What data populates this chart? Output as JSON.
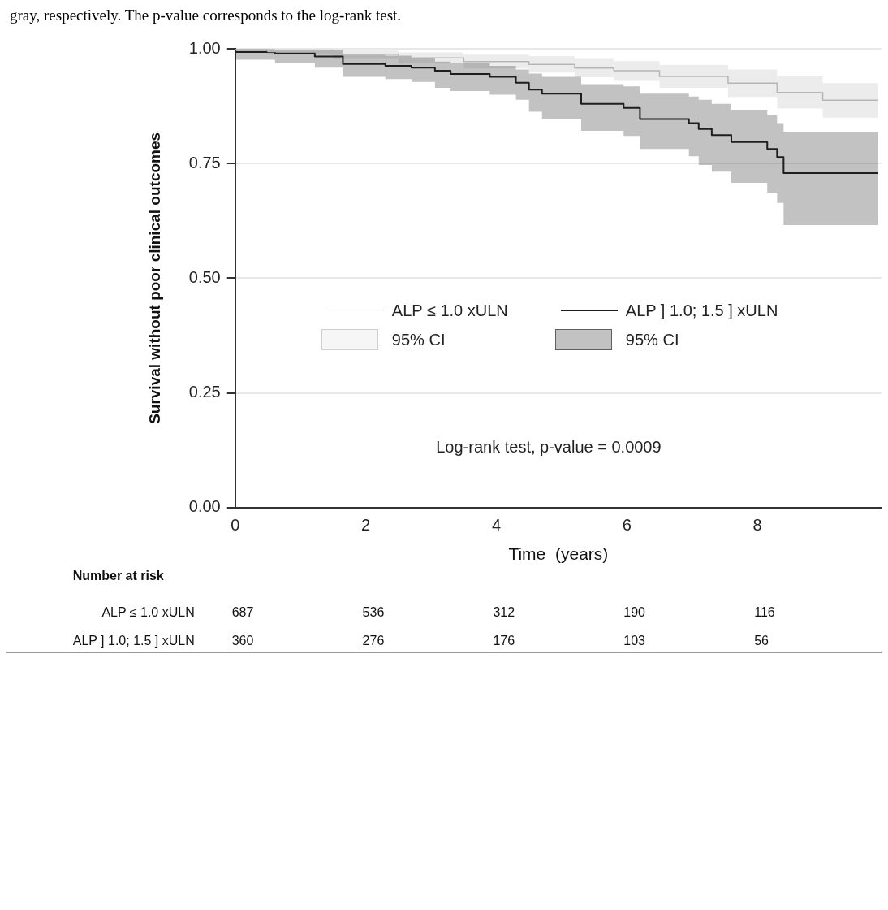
{
  "chart_data": {
    "type": "step",
    "xlabel": "Time  (years)",
    "ylabel": "Survival without poor clinical outcomes",
    "xlim": [
      0,
      9.9
    ],
    "xticks": [
      0,
      2,
      4,
      6,
      8
    ],
    "ylim": [
      0,
      1
    ],
    "yticks": [
      {
        "value": 0,
        "label": "0.00"
      },
      {
        "value": 0.25,
        "label": "0.25"
      },
      {
        "value": 0.5,
        "label": "0.50"
      },
      {
        "value": 0.75,
        "label": "0.75"
      },
      {
        "value": 1,
        "label": "1.00"
      }
    ],
    "grid": "y",
    "legend": "center",
    "marker": "none",
    "line_style": "solid",
    "series": [
      {
        "name": "ALP ≤ 1.0 xULN",
        "color": "#b5b5b5",
        "x": [
          0,
          0.5,
          1.5,
          2.5,
          3.5,
          4.5,
          5.2,
          5.8,
          6.5,
          7.55,
          8.3,
          9.0,
          9.45,
          9.85
        ],
        "values": [
          1,
          0.998,
          0.994,
          0.988,
          0.98,
          0.972,
          0.966,
          0.958,
          0.952,
          0.94,
          0.925,
          0.905,
          0.888,
          0.888
        ],
        "lower": [
          1,
          0.993,
          0.987,
          0.978,
          0.968,
          0.957,
          0.948,
          0.938,
          0.93,
          0.915,
          0.895,
          0.87,
          0.85,
          0.85
        ],
        "upper": [
          1,
          1,
          0.999,
          0.996,
          0.992,
          0.987,
          0.984,
          0.978,
          0.973,
          0.965,
          0.955,
          0.94,
          0.925,
          0.925
        ]
      },
      {
        "name": "ALP ] 1.0; 1.5 ] xULN",
        "color": "#1e1e1e",
        "x": [
          0,
          0.61,
          1.22,
          1.65,
          2.3,
          2.7,
          3.06,
          3.3,
          3.9,
          4.3,
          4.5,
          4.7,
          5.3,
          5.95,
          6.2,
          6.95,
          7.1,
          7.3,
          7.6,
          8.15,
          8.3,
          8.4,
          9.75,
          9.85
        ],
        "values": [
          1,
          0.993,
          0.99,
          0.983,
          0.967,
          0.963,
          0.959,
          0.952,
          0.945,
          0.939,
          0.926,
          0.911,
          0.902,
          0.88,
          0.871,
          0.847,
          0.838,
          0.825,
          0.812,
          0.797,
          0.782,
          0.764,
          0.729,
          0.729
        ],
        "lower": [
          1,
          0.976,
          0.969,
          0.959,
          0.939,
          0.934,
          0.928,
          0.915,
          0.908,
          0.9,
          0.889,
          0.863,
          0.847,
          0.821,
          0.81,
          0.782,
          0.766,
          0.747,
          0.732,
          0.708,
          0.686,
          0.664,
          0.616,
          0.616
        ],
        "upper": [
          1,
          0.999,
          0.998,
          0.997,
          0.987,
          0.985,
          0.98,
          0.972,
          0.968,
          0.963,
          0.955,
          0.946,
          0.939,
          0.923,
          0.918,
          0.902,
          0.896,
          0.889,
          0.88,
          0.867,
          0.855,
          0.838,
          0.819,
          0.819
        ]
      }
    ],
    "annotations": [
      "gray, respectively. The p-value corresponds to the log-rank test.",
      "Log-rank test, p-value = 0.0009",
      "95% CI",
      "95% CI",
      "Number at risk",
      "ALP ≤ 1.0 xULN",
      "687",
      "536",
      "312",
      "190",
      "116",
      "ALP ] 1.0; 1.5 ] xULN",
      "360",
      "276",
      "176",
      "103",
      "56"
    ]
  }
}
